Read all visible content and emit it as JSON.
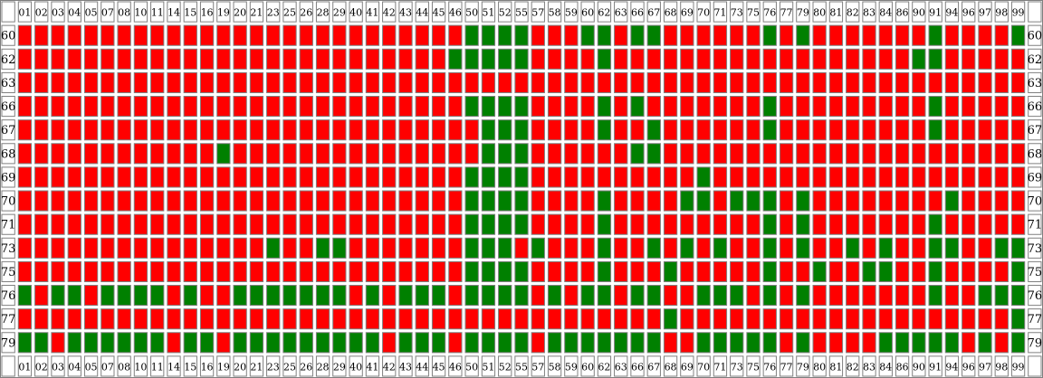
{
  "chart_data": {
    "type": "heatmap",
    "title": "",
    "xlabel": "",
    "ylabel": "",
    "legend": "none",
    "colors": {
      "on": "#008000",
      "off": "#ff0000",
      "border": "#808080",
      "background": "#ffffff"
    },
    "columns": [
      "01",
      "02",
      "03",
      "04",
      "05",
      "07",
      "08",
      "10",
      "11",
      "14",
      "15",
      "16",
      "19",
      "20",
      "21",
      "23",
      "25",
      "26",
      "28",
      "29",
      "40",
      "41",
      "42",
      "43",
      "44",
      "45",
      "46",
      "50",
      "51",
      "52",
      "55",
      "57",
      "58",
      "59",
      "60",
      "62",
      "63",
      "66",
      "67",
      "68",
      "69",
      "70",
      "71",
      "73",
      "75",
      "76",
      "77",
      "79",
      "80",
      "81",
      "82",
      "83",
      "84",
      "86",
      "90",
      "91",
      "94",
      "96",
      "97",
      "98",
      "99"
    ],
    "rows": [
      "60",
      "62",
      "63",
      "66",
      "67",
      "68",
      "69",
      "70",
      "71",
      "73",
      "75",
      "76",
      "77",
      "79"
    ],
    "values": [
      [
        0,
        0,
        0,
        0,
        0,
        0,
        0,
        0,
        0,
        0,
        0,
        0,
        0,
        0,
        0,
        0,
        0,
        0,
        0,
        0,
        0,
        0,
        0,
        0,
        0,
        0,
        0,
        1,
        1,
        1,
        1,
        0,
        0,
        0,
        1,
        1,
        0,
        1,
        1,
        0,
        0,
        0,
        0,
        0,
        0,
        1,
        0,
        1,
        0,
        0,
        0,
        0,
        0,
        0,
        0,
        1,
        0,
        0,
        0,
        0,
        1
      ],
      [
        0,
        0,
        0,
        0,
        0,
        0,
        0,
        0,
        0,
        0,
        0,
        0,
        0,
        0,
        0,
        0,
        0,
        0,
        0,
        0,
        0,
        0,
        0,
        0,
        0,
        0,
        1,
        1,
        1,
        1,
        1,
        0,
        0,
        0,
        0,
        1,
        0,
        0,
        0,
        0,
        0,
        0,
        0,
        0,
        0,
        0,
        0,
        0,
        0,
        0,
        0,
        0,
        0,
        0,
        1,
        1,
        0,
        0,
        0,
        0,
        0
      ],
      [
        0,
        0,
        0,
        0,
        0,
        0,
        0,
        0,
        0,
        0,
        0,
        0,
        0,
        0,
        0,
        0,
        0,
        0,
        0,
        0,
        0,
        0,
        0,
        0,
        0,
        0,
        0,
        0,
        0,
        0,
        0,
        0,
        0,
        0,
        0,
        0,
        0,
        0,
        0,
        0,
        0,
        0,
        0,
        0,
        0,
        0,
        0,
        0,
        0,
        0,
        0,
        0,
        0,
        0,
        0,
        0,
        0,
        0,
        0,
        0,
        0
      ],
      [
        0,
        0,
        0,
        0,
        0,
        0,
        0,
        0,
        0,
        0,
        0,
        0,
        0,
        0,
        0,
        0,
        0,
        0,
        0,
        0,
        0,
        0,
        0,
        0,
        0,
        0,
        0,
        1,
        1,
        1,
        1,
        0,
        0,
        0,
        0,
        1,
        0,
        1,
        0,
        0,
        0,
        0,
        0,
        0,
        0,
        1,
        0,
        0,
        0,
        0,
        0,
        0,
        0,
        0,
        0,
        1,
        0,
        0,
        0,
        0,
        0
      ],
      [
        0,
        0,
        0,
        0,
        0,
        0,
        0,
        0,
        0,
        0,
        0,
        0,
        0,
        0,
        0,
        0,
        0,
        0,
        0,
        0,
        0,
        0,
        0,
        0,
        0,
        0,
        0,
        0,
        1,
        1,
        1,
        0,
        0,
        0,
        0,
        1,
        0,
        0,
        1,
        0,
        0,
        0,
        0,
        0,
        0,
        1,
        0,
        0,
        0,
        0,
        0,
        0,
        0,
        0,
        0,
        1,
        0,
        0,
        0,
        0,
        0
      ],
      [
        0,
        0,
        0,
        0,
        0,
        0,
        0,
        0,
        0,
        0,
        0,
        0,
        1,
        0,
        0,
        0,
        0,
        0,
        0,
        0,
        0,
        0,
        0,
        0,
        0,
        0,
        0,
        0,
        1,
        1,
        1,
        0,
        0,
        0,
        0,
        0,
        0,
        1,
        1,
        0,
        0,
        0,
        0,
        0,
        0,
        0,
        0,
        0,
        0,
        0,
        0,
        0,
        0,
        0,
        0,
        0,
        0,
        0,
        0,
        0,
        0
      ],
      [
        0,
        0,
        0,
        0,
        0,
        0,
        0,
        0,
        0,
        0,
        0,
        0,
        0,
        0,
        0,
        0,
        0,
        0,
        0,
        0,
        0,
        0,
        0,
        0,
        0,
        0,
        0,
        1,
        1,
        1,
        1,
        0,
        0,
        0,
        0,
        0,
        0,
        0,
        0,
        0,
        0,
        1,
        0,
        0,
        0,
        0,
        0,
        0,
        0,
        0,
        0,
        0,
        0,
        0,
        0,
        0,
        0,
        0,
        0,
        0,
        0
      ],
      [
        0,
        0,
        0,
        0,
        0,
        0,
        0,
        0,
        0,
        0,
        0,
        0,
        0,
        0,
        0,
        0,
        0,
        0,
        0,
        0,
        0,
        0,
        0,
        0,
        0,
        0,
        0,
        1,
        1,
        1,
        1,
        0,
        0,
        0,
        0,
        1,
        0,
        0,
        0,
        0,
        1,
        1,
        0,
        1,
        1,
        1,
        0,
        1,
        0,
        0,
        0,
        0,
        0,
        0,
        0,
        0,
        1,
        0,
        0,
        0,
        0
      ],
      [
        0,
        0,
        0,
        0,
        0,
        0,
        0,
        0,
        0,
        0,
        0,
        0,
        0,
        0,
        0,
        0,
        0,
        0,
        0,
        0,
        0,
        0,
        0,
        0,
        0,
        0,
        0,
        1,
        1,
        1,
        1,
        0,
        0,
        0,
        0,
        1,
        0,
        0,
        0,
        0,
        0,
        0,
        0,
        0,
        0,
        1,
        0,
        1,
        0,
        0,
        0,
        0,
        0,
        0,
        0,
        1,
        0,
        0,
        0,
        0,
        0
      ],
      [
        0,
        0,
        0,
        0,
        0,
        0,
        0,
        0,
        0,
        0,
        0,
        0,
        0,
        0,
        0,
        1,
        0,
        0,
        1,
        1,
        0,
        0,
        0,
        0,
        0,
        0,
        0,
        1,
        1,
        1,
        0,
        1,
        0,
        0,
        0,
        1,
        0,
        0,
        1,
        0,
        1,
        0,
        1,
        0,
        0,
        1,
        0,
        1,
        0,
        0,
        1,
        0,
        1,
        0,
        0,
        1,
        1,
        0,
        0,
        1,
        1
      ],
      [
        0,
        0,
        0,
        0,
        0,
        0,
        0,
        0,
        0,
        0,
        0,
        0,
        0,
        0,
        0,
        0,
        0,
        0,
        0,
        0,
        0,
        0,
        0,
        0,
        0,
        0,
        0,
        1,
        1,
        1,
        1,
        0,
        0,
        0,
        0,
        1,
        0,
        0,
        0,
        1,
        0,
        0,
        0,
        0,
        0,
        1,
        0,
        0,
        1,
        0,
        0,
        1,
        1,
        0,
        0,
        1,
        0,
        0,
        0,
        0,
        1
      ],
      [
        1,
        0,
        1,
        1,
        0,
        1,
        1,
        1,
        1,
        0,
        1,
        0,
        0,
        1,
        1,
        1,
        1,
        1,
        1,
        1,
        0,
        1,
        0,
        1,
        1,
        1,
        0,
        1,
        1,
        1,
        1,
        0,
        1,
        0,
        1,
        1,
        0,
        1,
        1,
        0,
        0,
        1,
        1,
        1,
        0,
        1,
        0,
        1,
        0,
        0,
        0,
        0,
        0,
        0,
        0,
        1,
        0,
        0,
        1,
        1,
        1
      ],
      [
        0,
        0,
        0,
        0,
        0,
        0,
        0,
        0,
        0,
        0,
        0,
        0,
        0,
        0,
        0,
        0,
        0,
        0,
        0,
        0,
        0,
        0,
        0,
        0,
        0,
        0,
        0,
        0,
        0,
        0,
        0,
        0,
        0,
        0,
        0,
        0,
        0,
        0,
        0,
        1,
        0,
        0,
        0,
        0,
        0,
        0,
        0,
        0,
        0,
        0,
        0,
        0,
        0,
        0,
        0,
        0,
        0,
        0,
        0,
        0,
        1
      ],
      [
        1,
        1,
        0,
        1,
        1,
        1,
        1,
        1,
        1,
        0,
        1,
        1,
        0,
        1,
        1,
        1,
        1,
        1,
        1,
        1,
        1,
        1,
        0,
        1,
        1,
        1,
        0,
        1,
        1,
        1,
        1,
        0,
        1,
        1,
        1,
        1,
        1,
        1,
        1,
        0,
        0,
        1,
        1,
        1,
        1,
        1,
        0,
        1,
        0,
        0,
        0,
        0,
        1,
        1,
        1,
        1,
        1,
        0,
        1,
        0,
        1
      ]
    ]
  }
}
